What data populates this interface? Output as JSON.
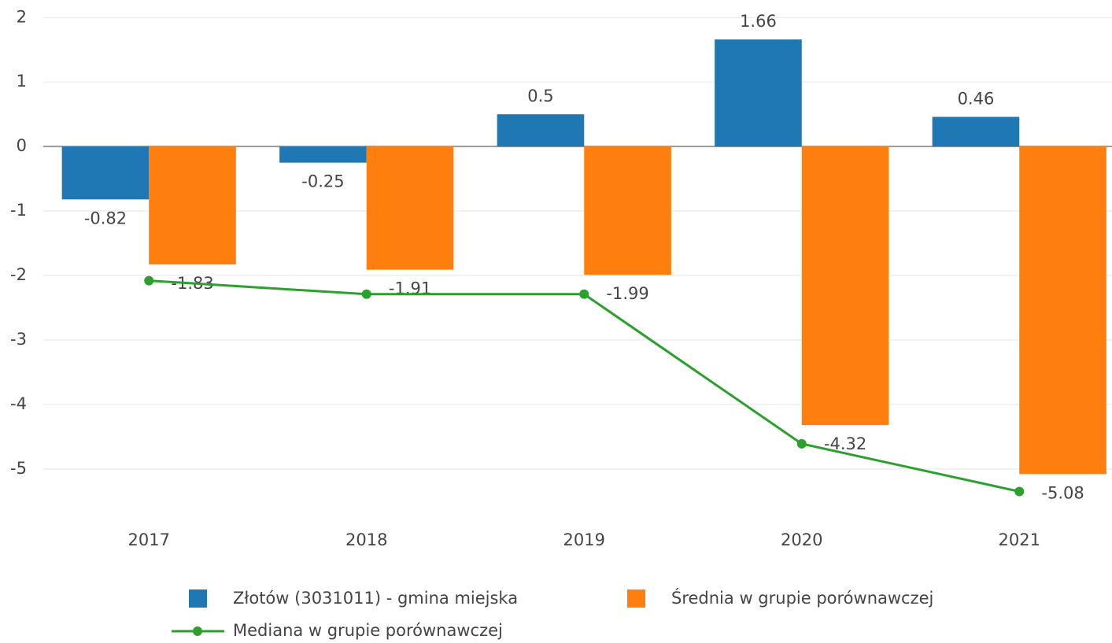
{
  "chart_data": {
    "type": "bar",
    "categories": [
      "2017",
      "2018",
      "2019",
      "2020",
      "2021"
    ],
    "series": [
      {
        "name": "Złotów (3031011) - gmina miejska",
        "color": "#1f77b4",
        "values": [
          -0.82,
          -0.25,
          0.5,
          1.66,
          0.46
        ]
      },
      {
        "name": "Średnia w grupie porównawczej",
        "color": "#ff7f0e",
        "values": [
          -1.83,
          -1.91,
          -1.99,
          -4.32,
          -5.08
        ]
      },
      {
        "name": "Mediana w grupie porównawczej",
        "type": "line",
        "color": "#2ca02c",
        "values": [
          -2.08,
          -2.29,
          -2.29,
          -4.61,
          -5.35
        ]
      }
    ],
    "ylim": [
      -5.6,
      2.15
    ],
    "yticks": [
      -5,
      -4,
      -3,
      -2,
      -1,
      0,
      1,
      2
    ],
    "grid": true
  }
}
